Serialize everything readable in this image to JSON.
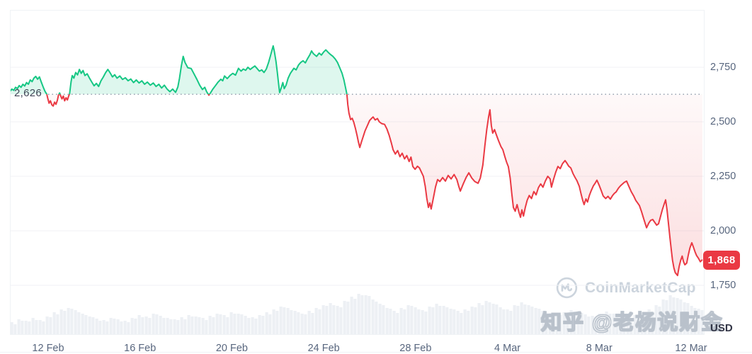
{
  "watermarks": {
    "coinmarketcap": "CoinMarketCap",
    "zhihu": "知乎 @老杨说财金"
  },
  "colors": {
    "up": "#16c784",
    "up_fill": "rgba(22,199,132,0.14)",
    "down": "#ea3943",
    "down_fill_top": "rgba(234,57,67,0.03)",
    "down_fill_bottom": "rgba(234,57,67,0.18)",
    "axis_text": "#58667e",
    "baseline_text": "#404657",
    "usd_text": "#323546",
    "grid": "#f0f2f5",
    "card_border": "#eff2f5",
    "volume": "#edf0f4",
    "badge_bg": "#ea3943",
    "badge_text": "#ffffff",
    "baseline_dots": "#8c96a7",
    "watermark_gray": "#ccd4dd"
  },
  "chart_data": {
    "type": "line",
    "title": "",
    "xlabel": "",
    "ylabel": "USD",
    "grid": "horizontal",
    "legend": "none",
    "baseline": {
      "price": 2626,
      "label": "2,626"
    },
    "last": {
      "price": 1868,
      "label": "1,868"
    },
    "y_axis": {
      "currency": "USD",
      "ticks": [
        {
          "price": 2750,
          "label": "2,750"
        },
        {
          "price": 2500,
          "label": "2,500"
        },
        {
          "price": 2250,
          "label": "2,250"
        },
        {
          "price": 2000,
          "label": "2,000"
        },
        {
          "price": 1750,
          "label": "1,750"
        }
      ]
    },
    "x_axis": {
      "ticks": [
        {
          "day": 2,
          "label": "12 Feb"
        },
        {
          "day": 6,
          "label": "16 Feb"
        },
        {
          "day": 10,
          "label": "20 Feb"
        },
        {
          "day": 14,
          "label": "24 Feb"
        },
        {
          "day": 18,
          "label": "28 Feb"
        },
        {
          "day": 22,
          "label": "4 Mar"
        },
        {
          "day": 26,
          "label": "8 Mar"
        },
        {
          "day": 30,
          "label": "12 Mar"
        }
      ]
    },
    "points": [
      [
        0.34,
        2640
      ],
      [
        0.42,
        2650
      ],
      [
        0.5,
        2644
      ],
      [
        0.58,
        2658
      ],
      [
        0.66,
        2652
      ],
      [
        0.74,
        2666
      ],
      [
        0.82,
        2658
      ],
      [
        0.9,
        2672
      ],
      [
        0.98,
        2664
      ],
      [
        1.06,
        2680
      ],
      [
        1.14,
        2672
      ],
      [
        1.22,
        2692
      ],
      [
        1.3,
        2684
      ],
      [
        1.38,
        2700
      ],
      [
        1.46,
        2708
      ],
      [
        1.54,
        2695
      ],
      [
        1.62,
        2706
      ],
      [
        1.7,
        2682
      ],
      [
        1.78,
        2660
      ],
      [
        1.86,
        2640
      ],
      [
        1.94,
        2626
      ],
      [
        1.98,
        2608
      ],
      [
        2.04,
        2585
      ],
      [
        2.1,
        2596
      ],
      [
        2.16,
        2578
      ],
      [
        2.22,
        2572
      ],
      [
        2.28,
        2590
      ],
      [
        2.34,
        2580
      ],
      [
        2.4,
        2598
      ],
      [
        2.45,
        2622
      ],
      [
        2.5,
        2632
      ],
      [
        2.55,
        2618
      ],
      [
        2.6,
        2605
      ],
      [
        2.66,
        2618
      ],
      [
        2.72,
        2596
      ],
      [
        2.78,
        2610
      ],
      [
        2.84,
        2600
      ],
      [
        2.9,
        2620
      ],
      [
        2.93,
        2626
      ],
      [
        2.96,
        2650
      ],
      [
        3.0,
        2684
      ],
      [
        3.05,
        2712
      ],
      [
        3.12,
        2700
      ],
      [
        3.2,
        2726
      ],
      [
        3.28,
        2715
      ],
      [
        3.36,
        2740
      ],
      [
        3.44,
        2722
      ],
      [
        3.52,
        2735
      ],
      [
        3.6,
        2712
      ],
      [
        3.7,
        2720
      ],
      [
        3.8,
        2700
      ],
      [
        3.9,
        2682
      ],
      [
        4.0,
        2665
      ],
      [
        4.1,
        2676
      ],
      [
        4.2,
        2662
      ],
      [
        4.3,
        2688
      ],
      [
        4.4,
        2705
      ],
      [
        4.5,
        2725
      ],
      [
        4.6,
        2740
      ],
      [
        4.7,
        2724
      ],
      [
        4.8,
        2706
      ],
      [
        4.9,
        2716
      ],
      [
        5.0,
        2700
      ],
      [
        5.12,
        2710
      ],
      [
        5.24,
        2694
      ],
      [
        5.36,
        2702
      ],
      [
        5.48,
        2688
      ],
      [
        5.6,
        2696
      ],
      [
        5.72,
        2680
      ],
      [
        5.84,
        2692
      ],
      [
        5.96,
        2678
      ],
      [
        6.08,
        2688
      ],
      [
        6.2,
        2672
      ],
      [
        6.32,
        2682
      ],
      [
        6.45,
        2668
      ],
      [
        6.58,
        2678
      ],
      [
        6.7,
        2662
      ],
      [
        6.82,
        2672
      ],
      [
        6.94,
        2655
      ],
      [
        7.06,
        2668
      ],
      [
        7.18,
        2650
      ],
      [
        7.3,
        2638
      ],
      [
        7.42,
        2650
      ],
      [
        7.55,
        2635
      ],
      [
        7.65,
        2660
      ],
      [
        7.72,
        2700
      ],
      [
        7.8,
        2756
      ],
      [
        7.88,
        2800
      ],
      [
        7.96,
        2772
      ],
      [
        8.08,
        2748
      ],
      [
        8.23,
        2744
      ],
      [
        8.35,
        2720
      ],
      [
        8.47,
        2696
      ],
      [
        8.6,
        2668
      ],
      [
        8.72,
        2648
      ],
      [
        8.82,
        2658
      ],
      [
        8.9,
        2638
      ],
      [
        9.0,
        2622
      ],
      [
        9.08,
        2634
      ],
      [
        9.16,
        2648
      ],
      [
        9.28,
        2665
      ],
      [
        9.4,
        2682
      ],
      [
        9.52,
        2695
      ],
      [
        9.6,
        2688
      ],
      [
        9.68,
        2710
      ],
      [
        9.8,
        2698
      ],
      [
        9.92,
        2712
      ],
      [
        10.04,
        2722
      ],
      [
        10.16,
        2714
      ],
      [
        10.29,
        2745
      ],
      [
        10.4,
        2732
      ],
      [
        10.5,
        2742
      ],
      [
        10.6,
        2736
      ],
      [
        10.7,
        2750
      ],
      [
        10.8,
        2740
      ],
      [
        10.9,
        2748
      ],
      [
        11.0,
        2756
      ],
      [
        11.1,
        2744
      ],
      [
        11.2,
        2732
      ],
      [
        11.3,
        2738
      ],
      [
        11.4,
        2726
      ],
      [
        11.5,
        2742
      ],
      [
        11.6,
        2772
      ],
      [
        11.68,
        2802
      ],
      [
        11.74,
        2826
      ],
      [
        11.8,
        2848
      ],
      [
        11.86,
        2818
      ],
      [
        11.92,
        2778
      ],
      [
        11.98,
        2728
      ],
      [
        12.03,
        2678
      ],
      [
        12.08,
        2634
      ],
      [
        12.15,
        2656
      ],
      [
        12.22,
        2680
      ],
      [
        12.28,
        2652
      ],
      [
        12.36,
        2668
      ],
      [
        12.45,
        2700
      ],
      [
        12.55,
        2722
      ],
      [
        12.7,
        2745
      ],
      [
        12.8,
        2738
      ],
      [
        12.9,
        2760
      ],
      [
        13.0,
        2772
      ],
      [
        13.1,
        2780
      ],
      [
        13.2,
        2770
      ],
      [
        13.3,
        2790
      ],
      [
        13.4,
        2808
      ],
      [
        13.47,
        2825
      ],
      [
        13.55,
        2812
      ],
      [
        13.69,
        2800
      ],
      [
        13.8,
        2815
      ],
      [
        13.9,
        2806
      ],
      [
        14.0,
        2820
      ],
      [
        14.09,
        2830
      ],
      [
        14.2,
        2818
      ],
      [
        14.3,
        2808
      ],
      [
        14.4,
        2800
      ],
      [
        14.5,
        2788
      ],
      [
        14.6,
        2772
      ],
      [
        14.7,
        2748
      ],
      [
        14.8,
        2722
      ],
      [
        14.88,
        2692
      ],
      [
        14.95,
        2658
      ],
      [
        15.01,
        2626
      ],
      [
        15.05,
        2578
      ],
      [
        15.1,
        2540
      ],
      [
        15.17,
        2510
      ],
      [
        15.24,
        2516
      ],
      [
        15.31,
        2498
      ],
      [
        15.38,
        2470
      ],
      [
        15.45,
        2438
      ],
      [
        15.51,
        2408
      ],
      [
        15.57,
        2382
      ],
      [
        15.64,
        2406
      ],
      [
        15.72,
        2432
      ],
      [
        15.8,
        2458
      ],
      [
        15.9,
        2482
      ],
      [
        16.0,
        2506
      ],
      [
        16.08,
        2515
      ],
      [
        16.15,
        2522
      ],
      [
        16.24,
        2508
      ],
      [
        16.34,
        2515
      ],
      [
        16.42,
        2500
      ],
      [
        16.52,
        2492
      ],
      [
        16.65,
        2488
      ],
      [
        16.75,
        2468
      ],
      [
        16.85,
        2438
      ],
      [
        16.94,
        2405
      ],
      [
        17.02,
        2372
      ],
      [
        17.12,
        2352
      ],
      [
        17.22,
        2368
      ],
      [
        17.32,
        2340
      ],
      [
        17.42,
        2356
      ],
      [
        17.52,
        2330
      ],
      [
        17.62,
        2345
      ],
      [
        17.72,
        2318
      ],
      [
        17.8,
        2338
      ],
      [
        17.88,
        2295
      ],
      [
        17.98,
        2282
      ],
      [
        18.08,
        2296
      ],
      [
        18.17,
        2288
      ],
      [
        18.25,
        2270
      ],
      [
        18.34,
        2250
      ],
      [
        18.42,
        2205
      ],
      [
        18.49,
        2150
      ],
      [
        18.56,
        2107
      ],
      [
        18.62,
        2128
      ],
      [
        18.68,
        2100
      ],
      [
        18.76,
        2142
      ],
      [
        18.87,
        2202
      ],
      [
        18.96,
        2235
      ],
      [
        19.06,
        2226
      ],
      [
        19.18,
        2244
      ],
      [
        19.3,
        2228
      ],
      [
        19.42,
        2254
      ],
      [
        19.55,
        2238
      ],
      [
        19.68,
        2258
      ],
      [
        19.8,
        2235
      ],
      [
        19.88,
        2205
      ],
      [
        19.95,
        2182
      ],
      [
        20.08,
        2216
      ],
      [
        20.2,
        2244
      ],
      [
        20.32,
        2266
      ],
      [
        20.45,
        2242
      ],
      [
        20.58,
        2226
      ],
      [
        20.72,
        2218
      ],
      [
        20.82,
        2242
      ],
      [
        20.93,
        2302
      ],
      [
        21.02,
        2392
      ],
      [
        21.1,
        2464
      ],
      [
        21.18,
        2522
      ],
      [
        21.24,
        2555
      ],
      [
        21.3,
        2482
      ],
      [
        21.36,
        2448
      ],
      [
        21.44,
        2464
      ],
      [
        21.52,
        2440
      ],
      [
        21.62,
        2412
      ],
      [
        21.72,
        2386
      ],
      [
        21.8,
        2372
      ],
      [
        21.89,
        2340
      ],
      [
        21.96,
        2316
      ],
      [
        22.04,
        2294
      ],
      [
        22.12,
        2242
      ],
      [
        22.19,
        2172
      ],
      [
        22.26,
        2107
      ],
      [
        22.34,
        2090
      ],
      [
        22.42,
        2120
      ],
      [
        22.5,
        2086
      ],
      [
        22.57,
        2062
      ],
      [
        22.63,
        2096
      ],
      [
        22.7,
        2068
      ],
      [
        22.78,
        2108
      ],
      [
        22.86,
        2140
      ],
      [
        22.95,
        2162
      ],
      [
        23.05,
        2148
      ],
      [
        23.15,
        2180
      ],
      [
        23.25,
        2165
      ],
      [
        23.35,
        2198
      ],
      [
        23.45,
        2215
      ],
      [
        23.55,
        2200
      ],
      [
        23.65,
        2228
      ],
      [
        23.76,
        2250
      ],
      [
        23.86,
        2238
      ],
      [
        23.92,
        2200
      ],
      [
        24.0,
        2232
      ],
      [
        24.1,
        2268
      ],
      [
        24.2,
        2295
      ],
      [
        24.3,
        2285
      ],
      [
        24.4,
        2308
      ],
      [
        24.51,
        2322
      ],
      [
        24.59,
        2310
      ],
      [
        24.67,
        2296
      ],
      [
        24.76,
        2288
      ],
      [
        24.86,
        2262
      ],
      [
        24.94,
        2246
      ],
      [
        25.03,
        2230
      ],
      [
        25.13,
        2204
      ],
      [
        25.21,
        2168
      ],
      [
        25.28,
        2140
      ],
      [
        25.34,
        2120
      ],
      [
        25.42,
        2146
      ],
      [
        25.49,
        2132
      ],
      [
        25.57,
        2162
      ],
      [
        25.65,
        2184
      ],
      [
        25.74,
        2206
      ],
      [
        25.82,
        2218
      ],
      [
        25.9,
        2232
      ],
      [
        25.99,
        2210
      ],
      [
        26.08,
        2186
      ],
      [
        26.17,
        2160
      ],
      [
        26.28,
        2148
      ],
      [
        26.38,
        2158
      ],
      [
        26.48,
        2145
      ],
      [
        26.58,
        2162
      ],
      [
        26.66,
        2172
      ],
      [
        26.73,
        2178
      ],
      [
        26.84,
        2196
      ],
      [
        26.92,
        2206
      ],
      [
        26.98,
        2212
      ],
      [
        27.09,
        2222
      ],
      [
        27.19,
        2228
      ],
      [
        27.29,
        2204
      ],
      [
        27.39,
        2180
      ],
      [
        27.5,
        2160
      ],
      [
        27.59,
        2140
      ],
      [
        27.67,
        2128
      ],
      [
        27.75,
        2116
      ],
      [
        27.84,
        2088
      ],
      [
        27.94,
        2054
      ],
      [
        28.06,
        2014
      ],
      [
        28.16,
        2036
      ],
      [
        28.24,
        2048
      ],
      [
        28.33,
        2052
      ],
      [
        28.42,
        2038
      ],
      [
        28.5,
        2026
      ],
      [
        28.58,
        2032
      ],
      [
        28.66,
        2062
      ],
      [
        28.75,
        2098
      ],
      [
        28.83,
        2124
      ],
      [
        28.89,
        2142
      ],
      [
        28.95,
        2096
      ],
      [
        29.02,
        2028
      ],
      [
        29.08,
        1966
      ],
      [
        29.14,
        1910
      ],
      [
        29.19,
        1866
      ],
      [
        29.25,
        1830
      ],
      [
        29.31,
        1808
      ],
      [
        29.41,
        1795
      ],
      [
        29.48,
        1836
      ],
      [
        29.55,
        1866
      ],
      [
        29.61,
        1884
      ],
      [
        29.67,
        1858
      ],
      [
        29.73,
        1844
      ],
      [
        29.81,
        1852
      ],
      [
        29.88,
        1890
      ],
      [
        29.95,
        1922
      ],
      [
        30.03,
        1945
      ],
      [
        30.1,
        1926
      ],
      [
        30.17,
        1904
      ],
      [
        30.24,
        1886
      ],
      [
        30.32,
        1874
      ],
      [
        30.4,
        1858
      ],
      [
        30.49,
        1868
      ]
    ],
    "volume_bars": [
      18,
      22,
      20,
      24,
      21,
      26,
      32,
      36,
      38,
      35,
      30,
      26,
      23,
      21,
      24,
      22,
      20,
      24,
      28,
      26,
      30,
      27,
      24,
      22,
      25,
      28,
      26,
      24,
      27,
      30,
      28,
      32,
      30,
      27,
      25,
      28,
      32,
      36,
      40,
      38,
      34,
      30,
      34,
      38,
      42,
      45,
      41,
      48,
      54,
      58,
      56,
      50,
      44,
      38,
      34,
      38,
      42,
      39,
      35,
      40,
      44,
      41,
      37,
      34,
      36,
      40,
      45,
      48,
      44,
      39,
      36,
      42,
      46,
      42,
      38,
      34,
      31,
      29,
      32,
      35,
      32,
      29,
      27,
      30,
      33,
      30,
      27,
      25,
      28,
      32,
      36,
      42,
      50,
      56,
      52,
      46,
      41,
      37
    ]
  }
}
